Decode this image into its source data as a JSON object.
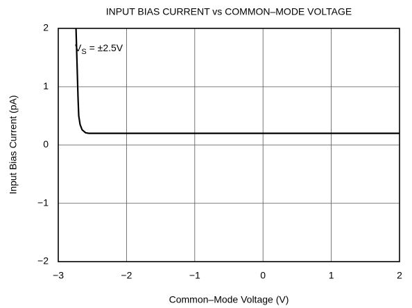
{
  "chart_data": {
    "type": "line",
    "title": "INPUT BIAS CURRENT vs COMMON–MODE VOLTAGE",
    "xlabel": "Common–Mode Voltage (V)",
    "ylabel": "Input Bias Current (pA)",
    "annotation": {
      "main": "V",
      "sub": "S",
      "rest": " = ±2.5V"
    },
    "x": [
      -2.74,
      -2.72,
      -2.71,
      -2.7,
      -2.68,
      -2.65,
      -2.6,
      -2.55,
      -2.5,
      2
    ],
    "series": [
      {
        "color": "#000000",
        "values": [
          2,
          1.2,
          0.8,
          0.5,
          0.35,
          0.26,
          0.21,
          0.2,
          0.2,
          0.2
        ]
      }
    ],
    "xlim": [
      -3,
      2
    ],
    "ylim": [
      -2,
      2
    ],
    "xticks": [
      {
        "value": -3,
        "label": "−3"
      },
      {
        "value": -2,
        "label": "−2"
      },
      {
        "value": -1,
        "label": "−1"
      },
      0,
      1,
      2
    ],
    "yticks": [
      {
        "value": -2,
        "label": "−2"
      },
      {
        "value": -1,
        "label": "−1"
      },
      0,
      1,
      2
    ],
    "grid": true
  }
}
